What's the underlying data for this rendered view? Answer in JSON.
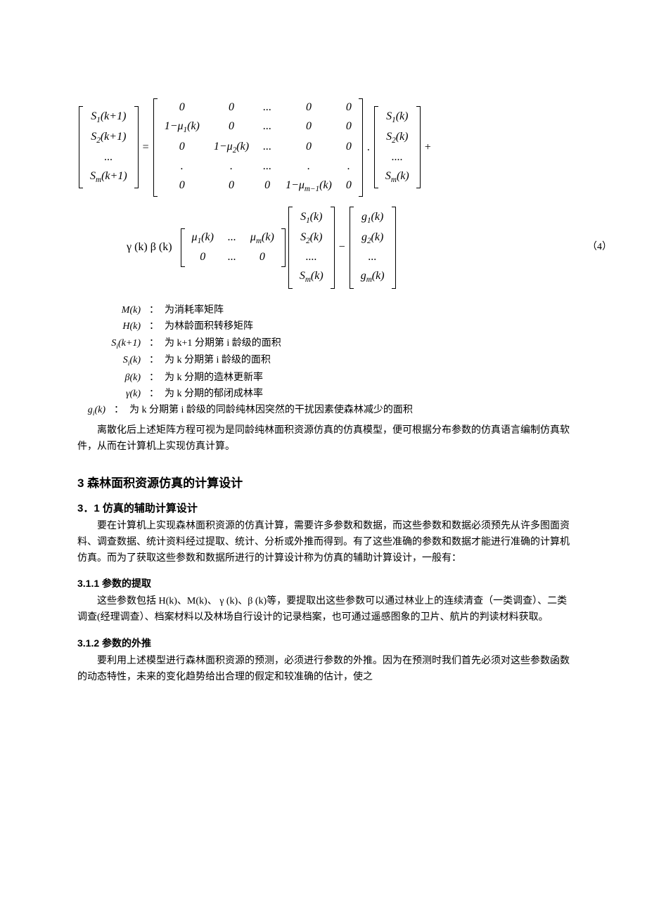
{
  "eq1": {
    "left_vec": [
      "S<sub>1</sub>(k+1)",
      "S<sub>2</sub>(k+1)",
      "...",
      "S<sub>m</sub>(k+1)"
    ],
    "eq_sign": "=",
    "big_matrix_rows": [
      [
        "0",
        "0",
        "...",
        "0",
        "0"
      ],
      [
        "1−μ<sub>1</sub>(k)",
        "0",
        "...",
        "0",
        "0"
      ],
      [
        "0",
        "1−μ<sub>2</sub>(k)",
        "...",
        "0",
        "0"
      ],
      [
        ".",
        ".",
        "...",
        ".",
        "."
      ],
      [
        "0",
        "0",
        "0",
        "1−μ<sub>m−1</sub>(k)",
        "0"
      ]
    ],
    "dot": ".",
    "right_vec": [
      "S<sub>1</sub>(k)",
      "S<sub>2</sub>(k)",
      "....",
      "S<sub>m</sub>(k)"
    ],
    "plus": "+"
  },
  "eq2": {
    "prefix": "γ (k) β (k)",
    "mu_matrix_rows": [
      [
        "μ<sub>1</sub>(k)",
        "...",
        "μ<sub>m</sub>(k)"
      ],
      [
        "0",
        "...",
        "0"
      ]
    ],
    "s_vec": [
      "S<sub>1</sub>(k)",
      "S<sub>2</sub>(k)",
      "....",
      "S<sub>m</sub>(k)"
    ],
    "minus": "−",
    "g_vec": [
      "g<sub>1</sub>(k)",
      "g<sub>2</sub>(k)",
      "...",
      "g<sub>m</sub>(k)"
    ],
    "eqnum": "（4）"
  },
  "defs": [
    {
      "sym": "M(k)",
      "text": "为消耗率矩阵"
    },
    {
      "sym": "H(k)",
      "text": "为林龄面积转移矩阵"
    },
    {
      "sym": "S<sub>i</sub>(k+1)",
      "text": "为 k+1 分期第 i 龄级的面积"
    },
    {
      "sym": "S<sub>i</sub>(k)",
      "text": "为 k 分期第 i 龄级的面积"
    },
    {
      "sym": "β(k)",
      "text": "为 k 分期的造林更新率"
    },
    {
      "sym": "γ(k)",
      "text": "为 k 分期的郁闭成林率"
    },
    {
      "sym": "g<sub>i</sub>(k)",
      "text": "为 k 分期第 i 龄级的同龄纯林因突然的干扰因素使森林减少的面积",
      "indent": -50
    }
  ],
  "colon": "：",
  "para1": "离散化后上述矩阵方程可视为是同龄纯林面积资源仿真的仿真模型，便可根据分布参数的仿真语言编制仿真软件，从而在计算机上实现仿真计算。",
  "h2": "3 森林面积资源仿真的计算设计",
  "s31": {
    "h3": "3．1 仿真的辅助计算设计",
    "p": "要在计算机上实现森林面积资源的仿真计算，需要许多参数和数据，而这些参数和数据必须预先从许多图面资料、调查数据、统计资料经过提取、统计、分析或外推而得到。有了这些准确的参数和数据才能进行准确的计算机仿真。而为了获取这些参数和数据所进行的计算设计称为仿真的辅助计算设计，一般有："
  },
  "s311": {
    "h4": "3.1.1 参数的提取",
    "p": "这些参数包括 H(k)、M(k)、 γ (k)、β (k)等，要提取出这些参数可以通过林业上的连续清查（一类调查）、二类调查(经理调查）、档案材料以及林场自行设计的记录档案，也可通过遥感图象的卫片、航片的判读材料获取。"
  },
  "s312": {
    "h4": "3.1.2 参数的外推",
    "p": "要利用上述模型进行森林面积资源的预测，必须进行参数的外推。因为在预测时我们首先必须对这些参数函数的动态特性，未来的变化趋势给出合理的假定和较准确的估计，使之"
  }
}
